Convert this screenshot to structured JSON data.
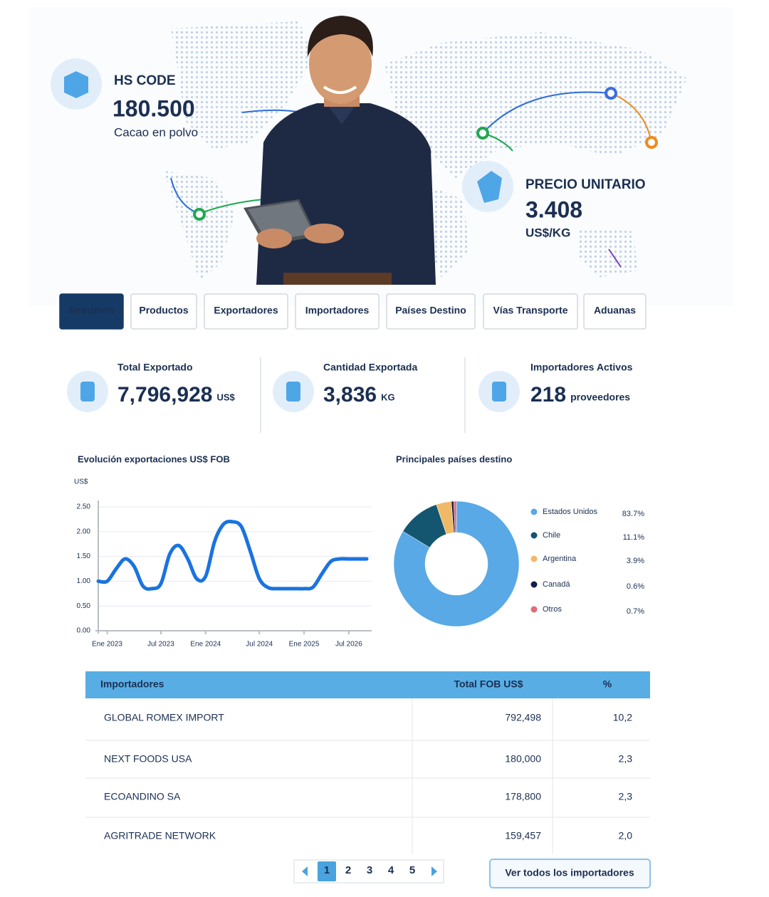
{
  "hero": {
    "hs_label": "HS CODE",
    "hs_code": "180.500",
    "hs_desc": "Cacao en polvo",
    "price_label": "PRECIO UNITARIO",
    "price_value": "3.408",
    "price_unit": "US$/KG"
  },
  "tabs": [
    "Resumen",
    "Productos",
    "Exportadores",
    "Importadores",
    "Países Destino",
    "Vías Transporte",
    "Aduanas"
  ],
  "kpis": [
    {
      "label": "Total Exportado",
      "value": "7,796,928",
      "unit": "US$"
    },
    {
      "label": "Cantidad Exportada",
      "value": "3,836",
      "unit": "KG"
    },
    {
      "label": "Importadores Activos",
      "value": "218",
      "unit": "proveedores"
    }
  ],
  "chart_data": [
    {
      "type": "line",
      "title": "Evolución exportaciones US$ FOB",
      "y_label": "US$",
      "color": "#1a73e0",
      "categories": [
        null,
        "Ene 2023",
        null,
        null,
        null,
        null,
        null,
        "Jul 2023",
        null,
        null,
        null,
        null,
        "Ene 2024",
        null,
        null,
        null,
        null,
        null,
        "Jul 2024",
        null,
        null,
        null,
        null,
        "Ene 2025",
        null,
        null,
        null,
        null,
        "Jul 2026",
        null,
        null
      ],
      "values": [
        1.0,
        1.0,
        1.25,
        1.45,
        1.3,
        0.9,
        0.85,
        0.95,
        1.55,
        1.72,
        1.45,
        1.05,
        1.1,
        1.8,
        2.15,
        2.2,
        2.1,
        1.6,
        1.05,
        0.87,
        0.85,
        0.85,
        0.85,
        0.85,
        0.88,
        1.15,
        1.4,
        1.45,
        1.45,
        1.45,
        1.45
      ],
      "ylim": [
        0,
        2.5
      ],
      "yticks": [
        {
          "value": 0,
          "label": "0.00"
        },
        {
          "value": 0.5,
          "label": "0.50"
        },
        {
          "value": 1,
          "label": "1.00"
        },
        {
          "value": 1.5,
          "label": "1.50"
        },
        {
          "value": 2,
          "label": "2.00"
        },
        {
          "value": 2.5,
          "label": "2.50"
        }
      ],
      "grid": true
    },
    {
      "type": "pie",
      "title": "Principales países destino",
      "categories": [
        "Estados Unidos",
        "Chile",
        "Argentina",
        "Canadá",
        "Otros"
      ],
      "values": [
        83.7,
        11.1,
        3.9,
        0.6,
        0.7
      ],
      "value_labels": [
        "83.7%",
        "11.1%",
        "3.9%",
        "0.6%",
        "0.7%"
      ],
      "colors": [
        "#58a9e6",
        "#14566f",
        "#f0b968",
        "#131f4a",
        "#e26b7b"
      ]
    }
  ],
  "table": {
    "headers": [
      "Importadores",
      "Total FOB US$",
      "%"
    ],
    "rows": [
      [
        "GLOBAL ROMEX IMPORT",
        "792,498",
        "10,2"
      ],
      [
        "NEXT FOODS USA",
        "180,000",
        "2,3"
      ],
      [
        "ECOANDINO SA",
        "178,800",
        "2,3"
      ],
      [
        "AGRITRADE NETWORK",
        "159,457",
        "2,0"
      ]
    ]
  },
  "pagination": [
    "1",
    "2",
    "3",
    "4",
    "5"
  ],
  "view_all": "Ver todos los importadores"
}
